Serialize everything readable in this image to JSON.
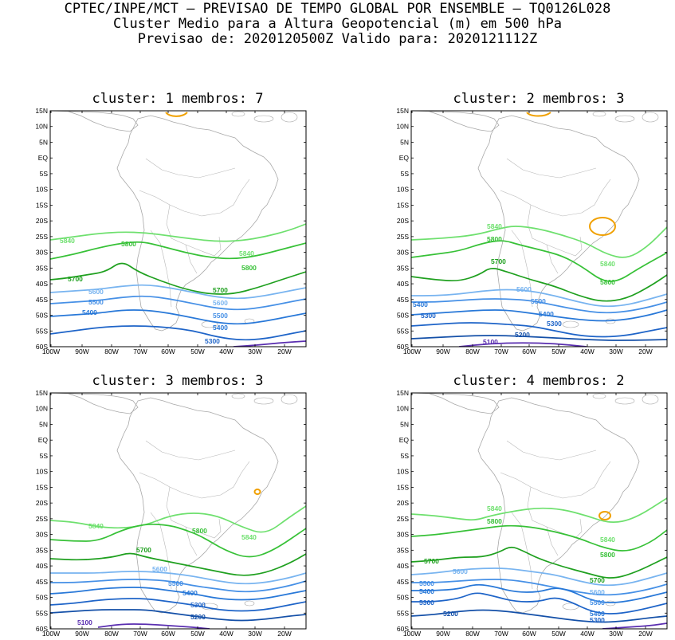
{
  "header": {
    "line1": "CPTEC/INPE/MCT — PREVISAO DE TEMPO GLOBAL POR ENSEMBLE — TQ0126L028",
    "line2": "Cluster Medio para a Altura Geopotencial (m) em 500 hPa",
    "line3": "Previsao de: 2020120500Z   Valido para: 2020121112Z"
  },
  "axes": {
    "lat_labels": [
      "15N",
      "10N",
      "5N",
      "EQ",
      "5S",
      "10S",
      "15S",
      "20S",
      "25S",
      "30S",
      "35S",
      "40S",
      "45S",
      "50S",
      "55S",
      "60S"
    ],
    "lon_labels": [
      "100W",
      "90W",
      "80W",
      "70W",
      "60W",
      "50W",
      "40W",
      "30W",
      "20W"
    ]
  },
  "contour_colors": {
    "5100": "#5a2eb0",
    "5200": "#1450a8",
    "5300": "#1e64c8",
    "5400": "#2878d8",
    "5500": "#4690e6",
    "5600": "#78b4f0",
    "5700": "#1fa01f",
    "5800": "#37c137",
    "5840": "#6ee06e",
    "high": "#f0a000"
  },
  "panels": [
    {
      "title": "cluster: 1   membros: 7",
      "labels": [
        {
          "text": "5840",
          "color": "#6ee06e"
        },
        {
          "text": "5840",
          "color": "#6ee06e"
        },
        {
          "text": "5800",
          "color": "#37c137"
        },
        {
          "text": "5800",
          "color": "#37c137"
        },
        {
          "text": "5700",
          "color": "#1fa01f"
        },
        {
          "text": "5700",
          "color": "#1fa01f"
        },
        {
          "text": "5600",
          "color": "#78b4f0"
        },
        {
          "text": "5600",
          "color": "#78b4f0"
        },
        {
          "text": "5500",
          "color": "#4690e6"
        },
        {
          "text": "5500",
          "color": "#4690e6"
        },
        {
          "text": "5400",
          "color": "#2878d8"
        },
        {
          "text": "5400",
          "color": "#2878d8"
        },
        {
          "text": "5300",
          "color": "#1e64c8"
        }
      ]
    },
    {
      "title": "cluster: 2   membros: 3",
      "labels": [
        {
          "text": "5840",
          "color": "#6ee06e"
        },
        {
          "text": "5840",
          "color": "#6ee06e"
        },
        {
          "text": "5800",
          "color": "#37c137"
        },
        {
          "text": "5800",
          "color": "#37c137"
        },
        {
          "text": "5700",
          "color": "#1fa01f"
        },
        {
          "text": "5600",
          "color": "#78b4f0"
        },
        {
          "text": "5500",
          "color": "#4690e6"
        },
        {
          "text": "5400",
          "color": "#2878d8"
        },
        {
          "text": "5400",
          "color": "#2878d8"
        },
        {
          "text": "5300",
          "color": "#1e64c8"
        },
        {
          "text": "5300",
          "color": "#1e64c8"
        },
        {
          "text": "5200",
          "color": "#1450a8"
        },
        {
          "text": "5100",
          "color": "#5a2eb0"
        }
      ]
    },
    {
      "title": "cluster: 3   membros: 3",
      "labels": [
        {
          "text": "5840",
          "color": "#6ee06e"
        },
        {
          "text": "5840",
          "color": "#6ee06e"
        },
        {
          "text": "5800",
          "color": "#37c137"
        },
        {
          "text": "5700",
          "color": "#1fa01f"
        },
        {
          "text": "5600",
          "color": "#78b4f0"
        },
        {
          "text": "5500",
          "color": "#4690e6"
        },
        {
          "text": "5400",
          "color": "#2878d8"
        },
        {
          "text": "5300",
          "color": "#1e64c8"
        },
        {
          "text": "5200",
          "color": "#1450a8"
        },
        {
          "text": "5100",
          "color": "#5a2eb0"
        }
      ]
    },
    {
      "title": "cluster: 4   membros: 2",
      "labels": [
        {
          "text": "5840",
          "color": "#6ee06e"
        },
        {
          "text": "5840",
          "color": "#6ee06e"
        },
        {
          "text": "5800",
          "color": "#37c137"
        },
        {
          "text": "5800",
          "color": "#37c137"
        },
        {
          "text": "5700",
          "color": "#1fa01f"
        },
        {
          "text": "5700",
          "color": "#1fa01f"
        },
        {
          "text": "5600",
          "color": "#78b4f0"
        },
        {
          "text": "5600",
          "color": "#78b4f0"
        },
        {
          "text": "5500",
          "color": "#4690e6"
        },
        {
          "text": "5500",
          "color": "#4690e6"
        },
        {
          "text": "5400",
          "color": "#2878d8"
        },
        {
          "text": "5400",
          "color": "#2878d8"
        },
        {
          "text": "5300",
          "color": "#1e64c8"
        },
        {
          "text": "5300",
          "color": "#1e64c8"
        },
        {
          "text": "5200",
          "color": "#1450a8"
        }
      ]
    }
  ]
}
